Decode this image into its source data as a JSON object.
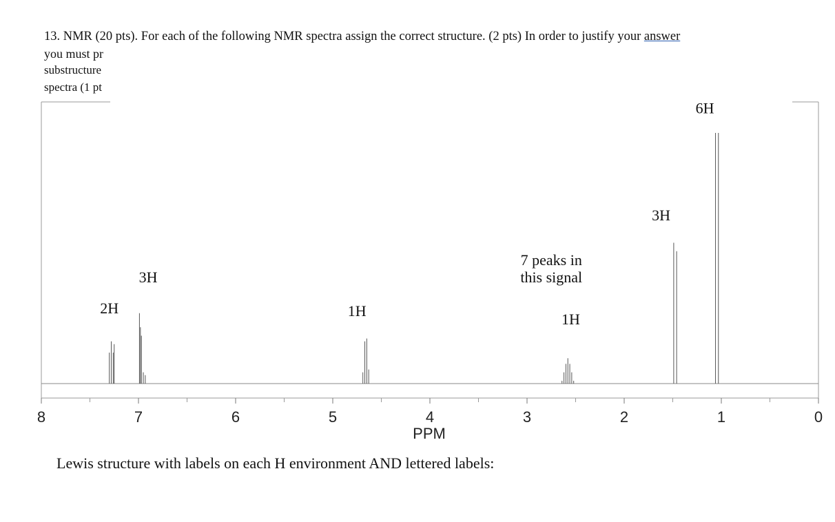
{
  "question": {
    "line1_prefix": "13.  NMR (20 pts). For each of the following NMR spectra assign the correct structure. (2 pts) In order to justify your ",
    "line1_link": "answer",
    "line2": "you must pr",
    "line3": "substructure",
    "line4": "spectra (1 pt"
  },
  "footer": "Lewis structure with labels on each H environment AND lettered labels:",
  "chart_data": {
    "type": "line",
    "title": "",
    "xlabel": "PPM",
    "ylabel": "",
    "x_reversed": true,
    "xlim": [
      8,
      0
    ],
    "x_ticks": [
      8,
      7,
      6,
      5,
      4,
      3,
      2,
      1,
      0
    ],
    "x_tick_labels": [
      "8",
      "7",
      "6",
      "5",
      "4",
      "3",
      "2",
      "1",
      "0"
    ],
    "ylim": [
      0,
      1
    ],
    "grid": false,
    "peaks": [
      {
        "shift": 7.28,
        "integration": "2H",
        "lines": [
          [
            7.3,
            0.11
          ],
          [
            7.28,
            0.15
          ],
          [
            7.26,
            0.11
          ],
          [
            7.25,
            0.14
          ]
        ]
      },
      {
        "shift": 6.96,
        "integration": "3H",
        "lines": [
          [
            6.99,
            0.25
          ],
          [
            6.98,
            0.2
          ],
          [
            6.97,
            0.17
          ],
          [
            6.95,
            0.04
          ],
          [
            6.93,
            0.03
          ]
        ]
      },
      {
        "shift": 4.64,
        "integration": "1H",
        "lines": [
          [
            4.69,
            0.04
          ],
          [
            4.67,
            0.15
          ],
          [
            4.65,
            0.16
          ],
          [
            4.63,
            0.05
          ]
        ]
      },
      {
        "shift": 2.58,
        "integration": "1H",
        "note": "7 peaks in\nthis signal",
        "lines": [
          [
            2.64,
            0.01
          ],
          [
            2.62,
            0.04
          ],
          [
            2.6,
            0.07
          ],
          [
            2.58,
            0.09
          ],
          [
            2.56,
            0.07
          ],
          [
            2.54,
            0.04
          ],
          [
            2.52,
            0.01
          ]
        ]
      },
      {
        "shift": 1.48,
        "integration": "3H",
        "lines": [
          [
            1.49,
            0.5
          ],
          [
            1.46,
            0.47
          ]
        ]
      },
      {
        "shift": 1.04,
        "integration": "6H",
        "lines": [
          [
            1.06,
            0.89
          ],
          [
            1.03,
            0.89
          ]
        ]
      }
    ],
    "annotations": [
      {
        "text": "2H",
        "x": 7.3,
        "y": 0.25
      },
      {
        "text": "3H",
        "x": 6.9,
        "y": 0.36
      },
      {
        "text": "1H",
        "x": 4.75,
        "y": 0.24
      },
      {
        "text": "7 peaks in",
        "x": 2.75,
        "y": 0.42
      },
      {
        "text": "this signal",
        "x": 2.75,
        "y": 0.36
      },
      {
        "text": "1H",
        "x": 2.55,
        "y": 0.21
      },
      {
        "text": "3H",
        "x": 1.62,
        "y": 0.58
      },
      {
        "text": "6H",
        "x": 1.17,
        "y": 0.96
      }
    ]
  }
}
